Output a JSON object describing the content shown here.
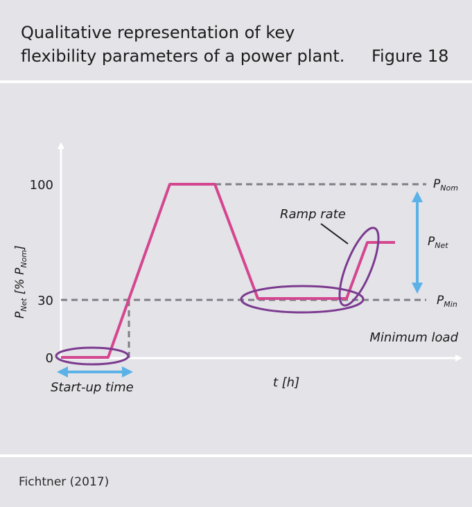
{
  "header": {
    "title_line1": "Qualitative representation of key",
    "title_line2": "flexibility parameters of a power plant.",
    "figure_label": "Figure 18"
  },
  "diagram": {
    "y_axis_label_main": "P",
    "y_axis_label_sub": "Net",
    "y_axis_label_mid": " [% P",
    "y_axis_label_sub2": "Nom",
    "y_axis_label_end": "]",
    "x_axis_label": "t [h]",
    "ticks": {
      "y100": "100",
      "y30": "30",
      "y0": "0"
    },
    "labels": {
      "p_nom_main": "P",
      "p_nom_sub": "Nom",
      "p_net_main": "P",
      "p_net_sub": "Net",
      "p_min_main": "P",
      "p_min_sub": "Min",
      "ramp_rate": "Ramp rate",
      "minimum_load": "Minimum load",
      "startup_time": "Start-up time"
    },
    "colors": {
      "curve": "#d4468f",
      "ellipse": "#7b3a8e",
      "arrow": "#5cb2e6",
      "dashed": "#7e7e85",
      "axis": "#ffffff"
    }
  },
  "footer": {
    "source": "Fichtner (2017)"
  }
}
